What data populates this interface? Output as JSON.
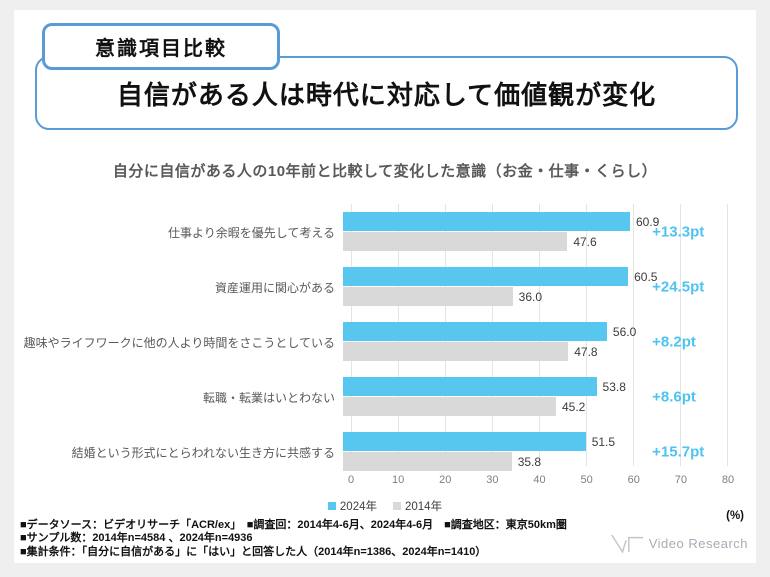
{
  "header": {
    "badge": "意識項目比較",
    "title": "自信がある人は時代に対応して価値観が変化"
  },
  "chart_data": {
    "type": "bar",
    "orientation": "horizontal",
    "title": "自分に自信がある人の10年前と比較して変化した意識（お金・仕事・くらし）",
    "categories": [
      "仕事より余暇を優先して考える",
      "資産運用に関心がある",
      "趣味やライフワークに他の人より時間をさこうとしている",
      "転職・転業はいとわない",
      "結婚という形式にとらわれない生き方に共感する"
    ],
    "series": [
      {
        "name": "2024年",
        "color": "#58C7EF",
        "values": [
          60.9,
          60.5,
          56.0,
          53.8,
          51.5
        ]
      },
      {
        "name": "2014年",
        "color": "#D9D9D9",
        "values": [
          47.6,
          36.0,
          47.8,
          45.2,
          35.8
        ]
      }
    ],
    "deltas": [
      "+13.3pt",
      "+24.5pt",
      "+8.2pt",
      "+8.6pt",
      "+15.7pt"
    ],
    "xlim": [
      0,
      80
    ],
    "ticks": [
      0,
      10,
      20,
      30,
      40,
      50,
      60,
      70,
      80
    ],
    "unit_label": "(%)",
    "grid": true,
    "legend_position": "bottom"
  },
  "footnotes": [
    "■データソース：ビデオリサーチ「ACR/ex」　■調査回：2014年4-6月、2024年4-6月　■調査地区：東京50km圏",
    "■サンプル数：2014年n=4584 、2024年n=4936",
    "■集計条件：「自分に自信がある」に「はい」と回答した人（2014年n=1386、2024年n=1410）"
  ],
  "logo": {
    "text": "Video Research"
  },
  "colors": {
    "accent_border": "#5B9BD5",
    "bar_2024": "#58C7EF",
    "bar_2014": "#D9D9D9",
    "delta_text": "#4FC3F0",
    "background": "#efefef"
  }
}
